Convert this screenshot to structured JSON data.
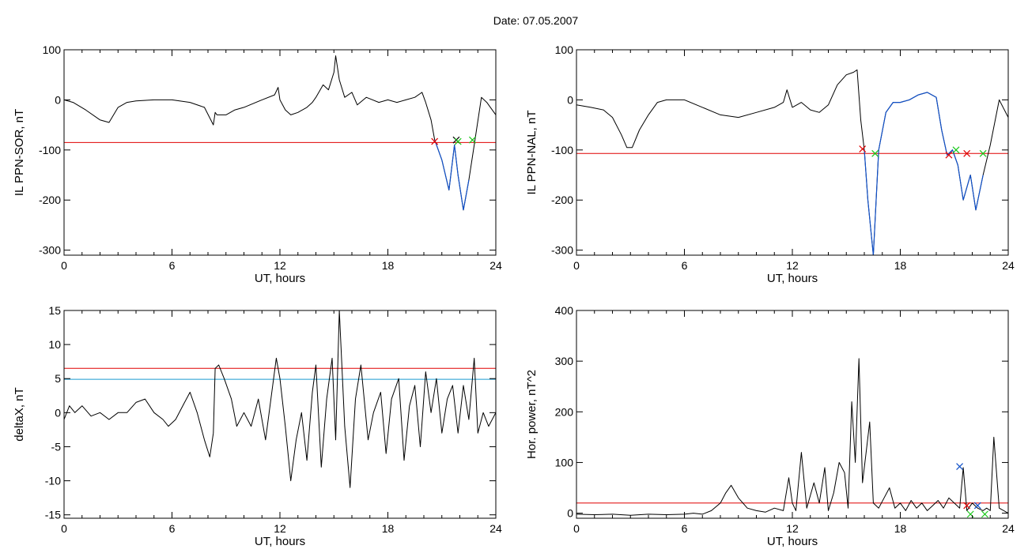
{
  "page_title": "Date:  07.05.2007",
  "colors": {
    "data": "#000000",
    "threshold": "#e00000",
    "segment": "#1050c8",
    "secondary_threshold": "#1a9ad0",
    "marker_start": "#e00000",
    "marker_end": "#18c818",
    "marker_dark": "#000000"
  },
  "chart_data": [
    {
      "type": "line",
      "xlabel": "UT, hours",
      "ylabel": "IL PPN-SOR, nT",
      "xlim": [
        0,
        24
      ],
      "ylim": [
        -310,
        100
      ],
      "xticks": [
        0,
        6,
        12,
        18,
        24
      ],
      "yticks": [
        100,
        0,
        -100,
        -200,
        -300
      ],
      "series": [
        {
          "x": [
            0,
            0.5,
            1.2,
            2.0,
            2.5,
            3.0,
            3.5,
            4.0,
            5.0,
            6.0,
            7.0,
            7.8,
            8.3,
            8.4,
            8.5,
            9.0,
            9.5,
            10.0,
            11.0,
            11.7,
            11.9,
            12.0,
            12.3,
            12.6,
            13.0,
            13.5,
            13.8,
            14.0,
            14.4,
            14.7,
            15.0,
            15.1,
            15.3,
            15.6,
            16.0,
            16.3,
            16.8,
            17.5,
            18.0,
            18.5,
            19.0,
            19.5,
            19.9,
            20.1,
            20.4,
            20.6,
            21.0,
            21.4,
            21.7,
            21.9,
            22.2,
            22.5,
            22.8,
            23.2,
            23.5,
            24.0
          ],
          "y": [
            0,
            -5,
            -20,
            -40,
            -45,
            -15,
            -5,
            -2,
            0,
            0,
            -5,
            -15,
            -50,
            -25,
            -30,
            -30,
            -20,
            -15,
            0,
            10,
            25,
            0,
            -20,
            -30,
            -25,
            -15,
            -5,
            5,
            30,
            20,
            55,
            88,
            40,
            5,
            15,
            -10,
            5,
            -5,
            0,
            -5,
            0,
            5,
            15,
            -5,
            -40,
            -80,
            -120,
            -180,
            -90,
            -150,
            -220,
            -160,
            -90,
            5,
            -5,
            -30
          ]
        }
      ],
      "threshold": -85,
      "highlight_window": [
        20.6,
        22.7
      ],
      "markers": [
        {
          "x": 20.6,
          "y": -83,
          "color": "marker_start"
        },
        {
          "x": 21.8,
          "y": -80,
          "color": "marker_dark"
        },
        {
          "x": 21.9,
          "y": -83,
          "color": "marker_end"
        },
        {
          "x": 22.7,
          "y": -80,
          "color": "marker_end"
        }
      ]
    },
    {
      "type": "line",
      "xlabel": "UT, hours",
      "ylabel": "IL PPN-NAL, nT",
      "xlim": [
        0,
        24
      ],
      "ylim": [
        -310,
        100
      ],
      "xticks": [
        0,
        6,
        12,
        18,
        24
      ],
      "yticks": [
        100,
        0,
        -100,
        -200,
        -300
      ],
      "series": [
        {
          "x": [
            0,
            0.8,
            1.5,
            2.0,
            2.5,
            2.8,
            3.1,
            3.5,
            4.0,
            4.5,
            5.0,
            6.0,
            7.0,
            8.0,
            9.0,
            10.0,
            11.0,
            11.5,
            11.7,
            12.0,
            12.5,
            13.0,
            13.5,
            14.0,
            14.5,
            15.0,
            15.4,
            15.6,
            15.8,
            16.0,
            16.2,
            16.5,
            16.8,
            17.2,
            17.6,
            18.0,
            18.5,
            19.0,
            19.5,
            20.0,
            20.3,
            20.6,
            20.9,
            21.2,
            21.5,
            21.9,
            22.2,
            22.6,
            23.0,
            23.5,
            24.0
          ],
          "y": [
            -10,
            -15,
            -20,
            -35,
            -70,
            -95,
            -95,
            -60,
            -30,
            -5,
            0,
            0,
            -15,
            -30,
            -35,
            -25,
            -15,
            -5,
            20,
            -15,
            -5,
            -20,
            -25,
            -10,
            30,
            50,
            55,
            60,
            -40,
            -100,
            -200,
            -310,
            -100,
            -25,
            -5,
            -5,
            0,
            10,
            15,
            5,
            -60,
            -110,
            -100,
            -130,
            -200,
            -150,
            -220,
            -150,
            -90,
            0,
            -35
          ]
        }
      ],
      "threshold": -107,
      "highlight_window": [
        15.9,
        22.6
      ],
      "markers": [
        {
          "x": 15.9,
          "y": -98,
          "color": "marker_start"
        },
        {
          "x": 16.6,
          "y": -107,
          "color": "marker_end"
        },
        {
          "x": 20.7,
          "y": -110,
          "color": "marker_start"
        },
        {
          "x": 21.1,
          "y": -100,
          "color": "marker_end"
        },
        {
          "x": 21.7,
          "y": -107,
          "color": "marker_start"
        },
        {
          "x": 22.6,
          "y": -107,
          "color": "marker_end"
        }
      ]
    },
    {
      "type": "line",
      "xlabel": "UT, hours",
      "ylabel": "deltaX, nT",
      "xlim": [
        0,
        24
      ],
      "ylim": [
        -15.5,
        15
      ],
      "xticks": [
        0,
        6,
        12,
        18,
        24
      ],
      "yticks": [
        15,
        10,
        5,
        0,
        -5,
        -10,
        -15
      ],
      "series": [
        {
          "x": [
            0,
            0.3,
            0.6,
            1.0,
            1.5,
            2.0,
            2.5,
            3.0,
            3.5,
            4.0,
            4.5,
            5.0,
            5.5,
            5.8,
            6.2,
            6.7,
            7.0,
            7.4,
            7.8,
            8.1,
            8.3,
            8.4,
            8.6,
            8.9,
            9.3,
            9.6,
            10.0,
            10.4,
            10.8,
            11.2,
            11.5,
            11.8,
            12.0,
            12.3,
            12.6,
            12.9,
            13.2,
            13.5,
            13.8,
            14.0,
            14.3,
            14.6,
            14.9,
            15.1,
            15.3,
            15.6,
            15.9,
            16.2,
            16.5,
            16.9,
            17.2,
            17.6,
            17.9,
            18.2,
            18.6,
            18.9,
            19.2,
            19.5,
            19.8,
            20.1,
            20.4,
            20.7,
            21.0,
            21.3,
            21.6,
            21.9,
            22.2,
            22.5,
            22.8,
            23.0,
            23.3,
            23.6,
            24.0
          ],
          "y": [
            -1,
            1,
            0,
            1,
            -0.5,
            0,
            -1,
            0,
            0,
            1.5,
            2,
            0,
            -1,
            -2,
            -1,
            1.5,
            3,
            0,
            -4,
            -6.5,
            -3,
            6.5,
            7,
            5,
            2,
            -2,
            0,
            -2,
            2,
            -4,
            2,
            8,
            5,
            -2,
            -10,
            -4,
            0,
            -7,
            3,
            7,
            -8,
            2,
            8,
            -4,
            15,
            -2,
            -11,
            2,
            7,
            -4,
            0,
            3,
            -6,
            2,
            5,
            -7,
            1,
            4,
            -5,
            6,
            0,
            5,
            -3,
            2,
            4,
            -3,
            4,
            -1,
            8,
            -3,
            0,
            -2,
            0
          ]
        }
      ],
      "thresholds": [
        {
          "value": 6.5,
          "color": "threshold"
        },
        {
          "value": 4.9,
          "color": "secondary_threshold"
        }
      ]
    },
    {
      "type": "line",
      "xlabel": "UT, hours",
      "ylabel": "Hor. power, nT^2",
      "xlim": [
        0,
        24
      ],
      "ylim": [
        -10,
        400
      ],
      "xticks": [
        0,
        6,
        12,
        18,
        24
      ],
      "yticks": [
        400,
        300,
        200,
        100,
        0
      ],
      "series": [
        {
          "x": [
            0,
            1,
            2,
            3,
            4,
            5,
            6,
            6.5,
            7.0,
            7.5,
            8.0,
            8.3,
            8.6,
            9.0,
            9.5,
            10.0,
            10.5,
            11.0,
            11.5,
            11.8,
            12.0,
            12.2,
            12.5,
            12.8,
            13.2,
            13.5,
            13.8,
            14.0,
            14.3,
            14.6,
            14.9,
            15.1,
            15.3,
            15.5,
            15.7,
            15.9,
            16.1,
            16.3,
            16.5,
            16.8,
            17.1,
            17.4,
            17.7,
            18.0,
            18.3,
            18.6,
            18.9,
            19.2,
            19.5,
            19.8,
            20.1,
            20.4,
            20.7,
            21.0,
            21.3,
            21.5,
            21.7,
            22.0,
            22.3,
            22.6,
            22.8,
            23.0,
            23.2,
            23.5,
            24.0
          ],
          "y": [
            -2,
            -3,
            -2,
            -4,
            -2,
            -3,
            -2,
            0,
            -2,
            5,
            20,
            40,
            55,
            30,
            10,
            5,
            2,
            10,
            5,
            70,
            20,
            5,
            120,
            10,
            60,
            20,
            90,
            5,
            40,
            100,
            80,
            10,
            220,
            100,
            305,
            60,
            120,
            180,
            20,
            10,
            30,
            50,
            10,
            20,
            5,
            25,
            10,
            20,
            5,
            15,
            25,
            10,
            30,
            20,
            10,
            90,
            5,
            20,
            10,
            5,
            10,
            5,
            150,
            10,
            0
          ]
        }
      ],
      "threshold": 20,
      "markers": [
        {
          "x": 21.3,
          "y": 92,
          "color": "segment"
        },
        {
          "x": 21.7,
          "y": 15,
          "color": "marker_start"
        },
        {
          "x": 21.9,
          "y": -2,
          "color": "marker_end"
        },
        {
          "x": 22.3,
          "y": 15,
          "color": "segment"
        },
        {
          "x": 22.7,
          "y": -2,
          "color": "marker_end"
        }
      ]
    }
  ]
}
